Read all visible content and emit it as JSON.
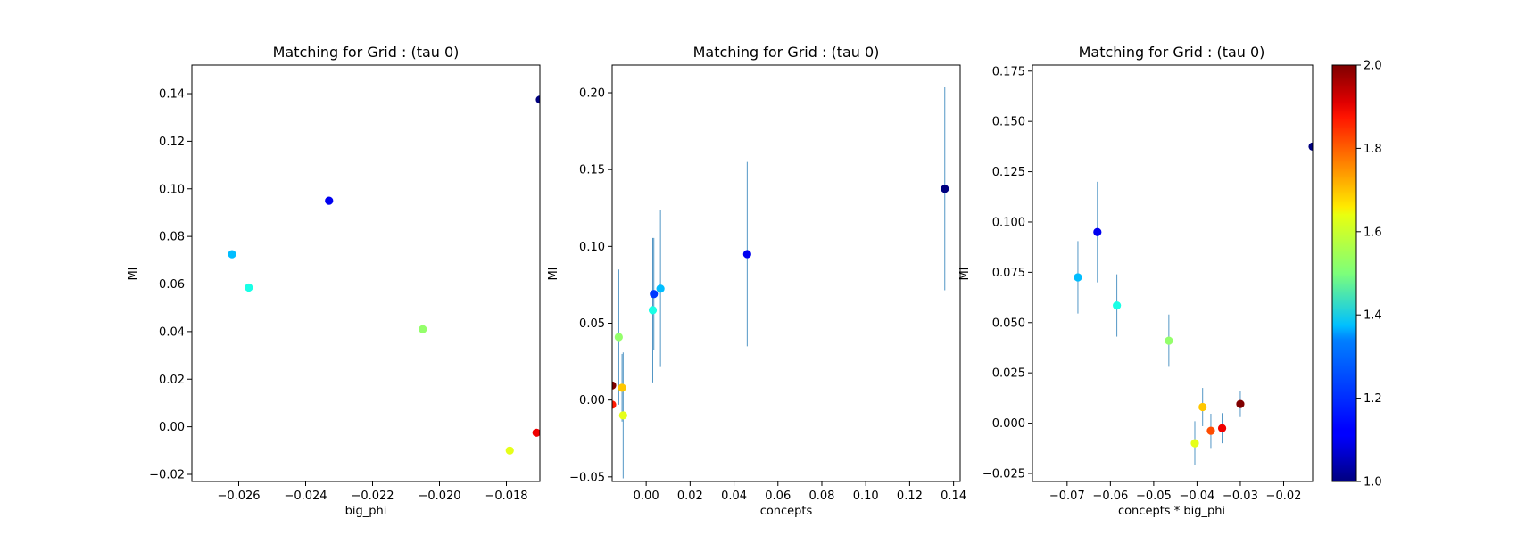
{
  "figure": {
    "colorbar": {
      "range": [
        1.0,
        2.0
      ],
      "ticks": [
        1.0,
        1.2,
        1.4,
        1.6,
        1.8,
        2.0
      ],
      "colormap": "jet"
    }
  },
  "chart_data": [
    {
      "type": "scatter",
      "title": "Matching for Grid : (tau 0)",
      "xlabel": "big_phi",
      "ylabel": "MI",
      "xlim": [
        -0.0274,
        -0.017
      ],
      "ylim": [
        -0.023,
        0.152
      ],
      "xticks": [
        -0.026,
        -0.024,
        -0.022,
        -0.02,
        -0.018
      ],
      "yticks": [
        -0.02,
        0.0,
        0.02,
        0.04,
        0.06,
        0.08,
        0.1,
        0.12,
        0.14
      ],
      "grid": false,
      "points": [
        {
          "x": -0.017,
          "y": 0.1375,
          "c": 1.0
        },
        {
          "x": -0.0233,
          "y": 0.095,
          "c": 1.11
        },
        {
          "x": -0.0262,
          "y": 0.0725,
          "c": 1.31
        },
        {
          "x": -0.0257,
          "y": 0.0585,
          "c": 1.4
        },
        {
          "x": -0.0205,
          "y": 0.041,
          "c": 1.52
        },
        {
          "x": -0.0179,
          "y": -0.01,
          "c": 1.6
        },
        {
          "x": -0.0171,
          "y": -0.0025,
          "c": 1.89
        }
      ]
    },
    {
      "type": "scatter",
      "title": "Matching for Grid : (tau 0)",
      "xlabel": "concepts",
      "ylabel": "MI",
      "xlim": [
        -0.0155,
        0.143
      ],
      "ylim": [
        -0.053,
        0.218
      ],
      "xticks": [
        0.0,
        0.02,
        0.04,
        0.06,
        0.08,
        0.1,
        0.12,
        0.14
      ],
      "yticks": [
        -0.05,
        0.0,
        0.05,
        0.1,
        0.15,
        0.2
      ],
      "grid": false,
      "points": [
        {
          "x": 0.136,
          "y": 0.1375,
          "err": 0.066,
          "c": 1.0
        },
        {
          "x": 0.046,
          "y": 0.095,
          "err": 0.06,
          "c": 1.11
        },
        {
          "x": 0.0035,
          "y": 0.069,
          "err": 0.0365,
          "c": 1.18
        },
        {
          "x": 0.0065,
          "y": 0.0725,
          "err": 0.051,
          "c": 1.31
        },
        {
          "x": 0.003,
          "y": 0.0585,
          "err": 0.047,
          "c": 1.4
        },
        {
          "x": -0.0125,
          "y": 0.041,
          "err": 0.044,
          "c": 1.52
        },
        {
          "x": -0.011,
          "y": 0.008,
          "err": 0.022,
          "c": 1.68
        },
        {
          "x": -0.0105,
          "y": -0.01,
          "err": 0.041,
          "c": 1.6
        },
        {
          "x": -0.0155,
          "y": 0.0095,
          "err": 0.0,
          "c": 2.0
        },
        {
          "x": -0.0155,
          "y": -0.003,
          "err": 0.0,
          "c": 1.85
        }
      ]
    },
    {
      "type": "scatter",
      "title": "Matching for Grid : (tau 0)",
      "xlabel": "concepts * big_phi",
      "ylabel": "MI",
      "xlim": [
        -0.078,
        -0.0133
      ],
      "ylim": [
        -0.029,
        0.178
      ],
      "xticks": [
        -0.07,
        -0.06,
        -0.05,
        -0.04,
        -0.03,
        -0.02
      ],
      "yticks": [
        -0.025,
        0.0,
        0.025,
        0.05,
        0.075,
        0.1,
        0.125,
        0.15,
        0.175
      ],
      "grid": false,
      "points": [
        {
          "x": -0.0133,
          "y": 0.1375,
          "err": 0.0,
          "c": 1.0
        },
        {
          "x": -0.063,
          "y": 0.095,
          "err": 0.025,
          "c": 1.11
        },
        {
          "x": -0.0675,
          "y": 0.0725,
          "err": 0.018,
          "c": 1.31
        },
        {
          "x": -0.0585,
          "y": 0.0585,
          "err": 0.0155,
          "c": 1.4
        },
        {
          "x": -0.0465,
          "y": 0.041,
          "err": 0.013,
          "c": 1.52
        },
        {
          "x": -0.0387,
          "y": 0.008,
          "err": 0.0095,
          "c": 1.68
        },
        {
          "x": -0.0405,
          "y": -0.01,
          "err": 0.011,
          "c": 1.6
        },
        {
          "x": -0.0368,
          "y": -0.0038,
          "err": 0.0085,
          "c": 1.8
        },
        {
          "x": -0.0342,
          "y": -0.0025,
          "err": 0.0075,
          "c": 1.89
        },
        {
          "x": -0.03,
          "y": 0.0095,
          "err": 0.0065,
          "c": 2.0
        }
      ]
    }
  ]
}
